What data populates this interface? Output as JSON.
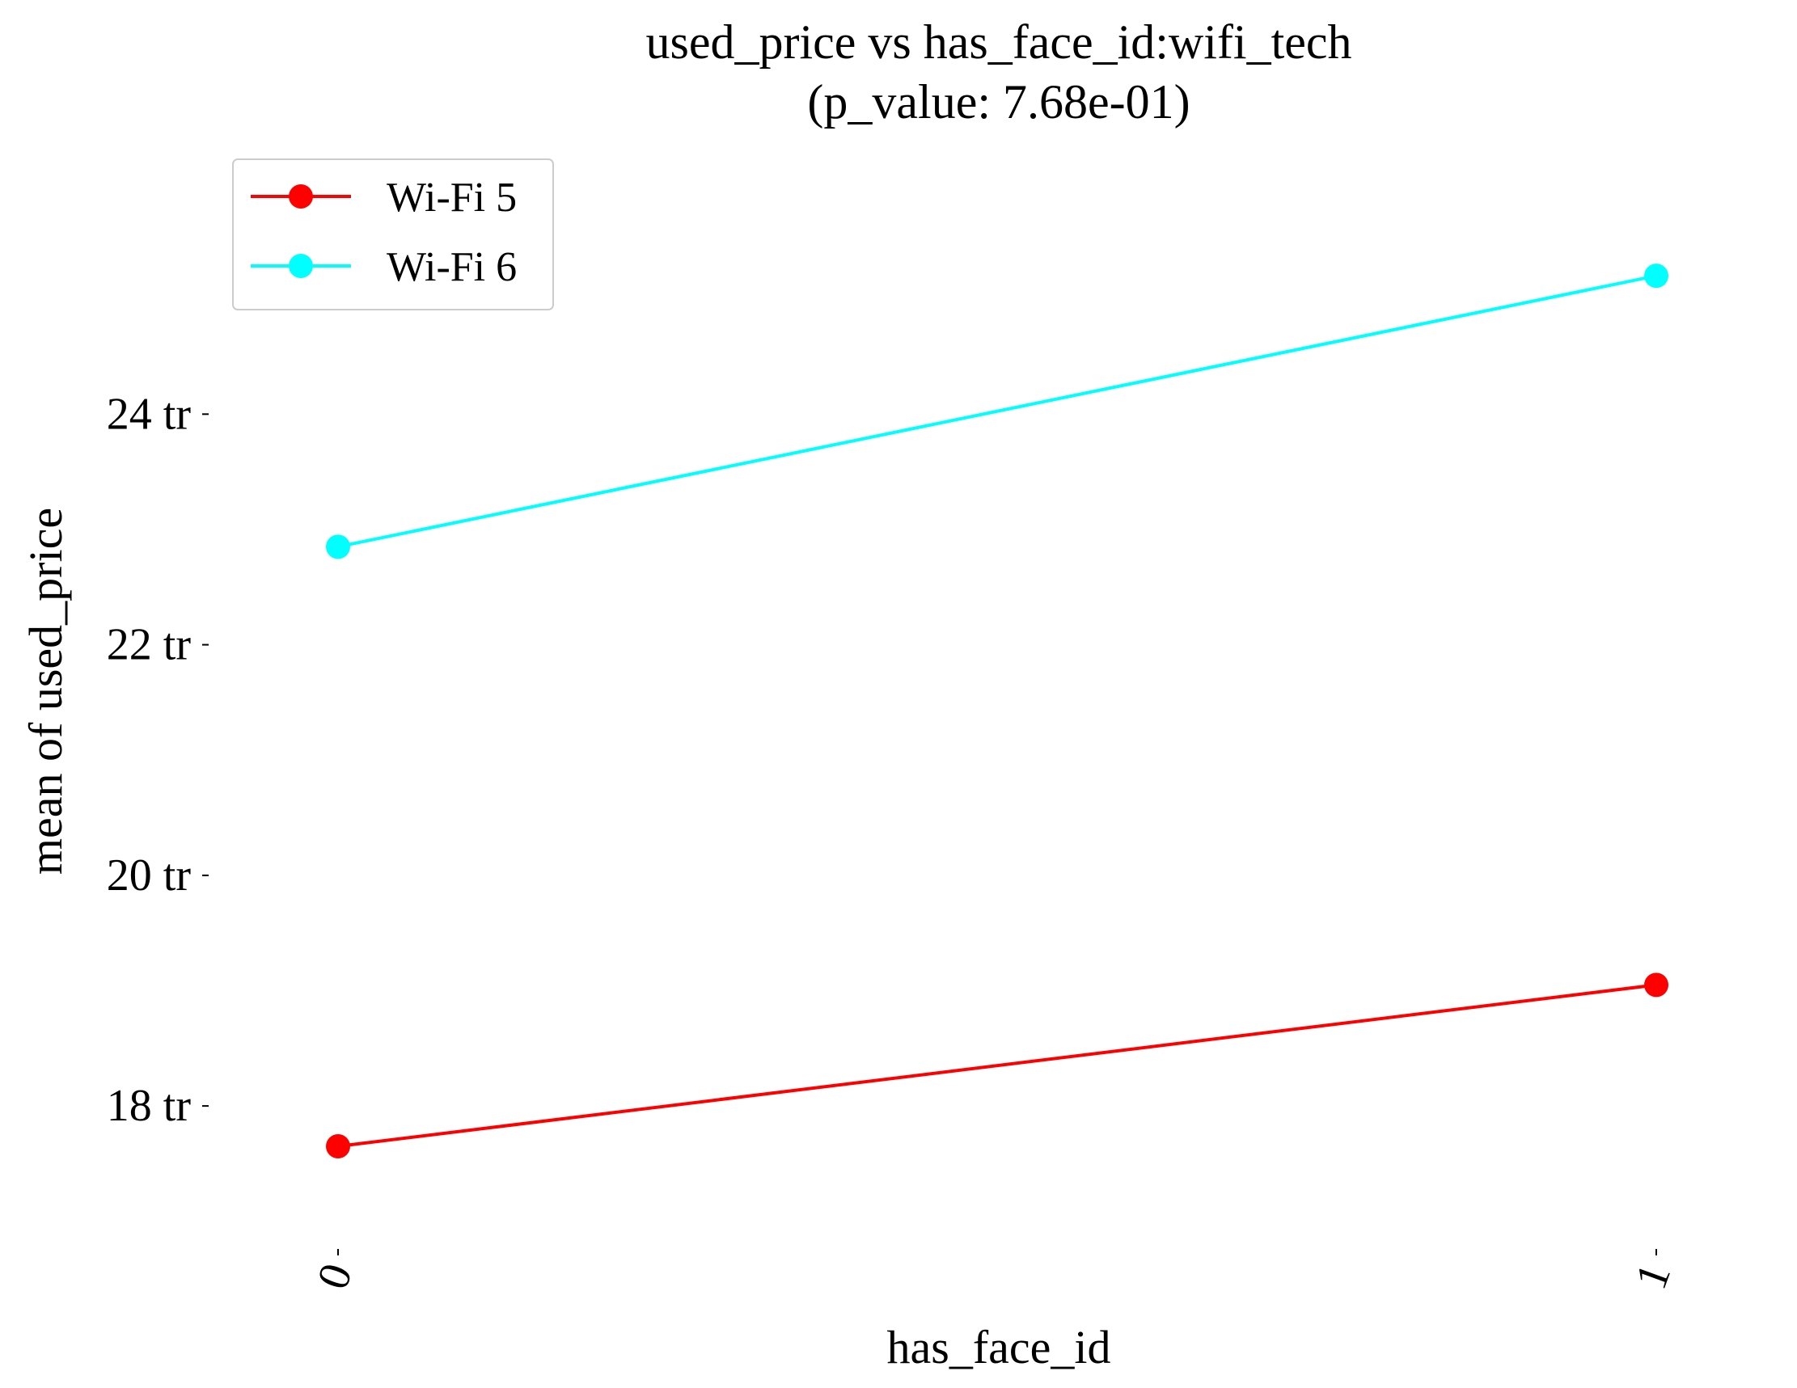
{
  "chart_data": {
    "type": "line",
    "title": "used_price vs has_face_id:wifi_tech",
    "subtitle": "(p_value: 7.68e-01)",
    "xlabel": "has_face_id",
    "ylabel": "mean of used_price",
    "categories": [
      "0",
      "1"
    ],
    "y_ticks": [
      18,
      20,
      22,
      24
    ],
    "y_tick_labels": [
      "18 tr",
      "20 tr",
      "22 tr",
      "24 tr"
    ],
    "ylim": [
      16.9,
      26.4
    ],
    "grid": false,
    "legend_position": "top-left",
    "series": [
      {
        "name": "Wi-Fi 5",
        "color": "#ff0000",
        "values": [
          17.65,
          19.05
        ]
      },
      {
        "name": "Wi-Fi 6",
        "color": "#00ffff",
        "values": [
          22.85,
          25.2
        ]
      }
    ]
  }
}
